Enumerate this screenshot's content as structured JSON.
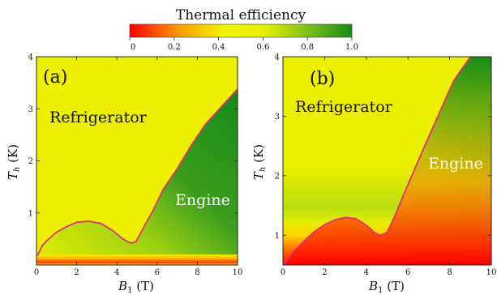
{
  "colorbar": {
    "title": "Thermal efficiency",
    "ticks": [
      "0",
      "0.2",
      "0.4",
      "0.6",
      "0.8",
      "1.0"
    ],
    "colors": [
      "#ff0000",
      "#ff9a00",
      "#f2f200",
      "#e8f000",
      "#7cc21c",
      "#168a16"
    ]
  },
  "chart_data": [
    {
      "type": "heatmap",
      "panel_label": "(a)",
      "xlabel": "B_1 (T)",
      "ylabel": "T_h (K)",
      "xlim": [
        0,
        10
      ],
      "ylim": [
        0,
        4
      ],
      "xticks": [
        "0",
        "2",
        "4",
        "6",
        "8",
        "10"
      ],
      "yticks": [
        "1",
        "2",
        "3",
        "4"
      ],
      "regions": {
        "refrigerator": "Refrigerator",
        "engine": "Engine"
      },
      "boundary_color": "#e0307a",
      "boundary": {
        "x": [
          0.05,
          0.3,
          0.6,
          1.0,
          1.5,
          2.0,
          2.6,
          3.2,
          3.8,
          4.3,
          4.7,
          4.95,
          5.3,
          5.8,
          6.3,
          7.0,
          7.7,
          8.4,
          9.1,
          10.0
        ],
        "y": [
          0.18,
          0.38,
          0.5,
          0.63,
          0.74,
          0.82,
          0.84,
          0.8,
          0.66,
          0.5,
          0.42,
          0.45,
          0.7,
          1.05,
          1.45,
          1.85,
          2.3,
          2.7,
          3.0,
          3.38
        ]
      }
    },
    {
      "type": "heatmap",
      "panel_label": "(b)",
      "xlabel": "B_1 (T)",
      "ylabel": "T_h (K)",
      "xlim": [
        0,
        10
      ],
      "ylim": [
        0.5,
        4
      ],
      "xticks": [
        "0",
        "2",
        "4",
        "6",
        "8",
        "10"
      ],
      "yticks": [
        "1",
        "2",
        "3",
        "4"
      ],
      "regions": {
        "refrigerator": "Refrigerator",
        "engine": "Engine"
      },
      "boundary_color": "#e0307a",
      "boundary": {
        "x": [
          0.0,
          0.5,
          1.0,
          1.5,
          2.0,
          2.5,
          3.0,
          3.5,
          4.0,
          4.4,
          4.7,
          5.0,
          5.4,
          6.0,
          6.8,
          7.5,
          8.2,
          9.0
        ],
        "y": [
          0.5,
          0.72,
          0.9,
          1.06,
          1.18,
          1.26,
          1.3,
          1.28,
          1.17,
          1.04,
          1.0,
          1.05,
          1.35,
          1.85,
          2.5,
          3.05,
          3.6,
          4.0
        ]
      }
    }
  ]
}
